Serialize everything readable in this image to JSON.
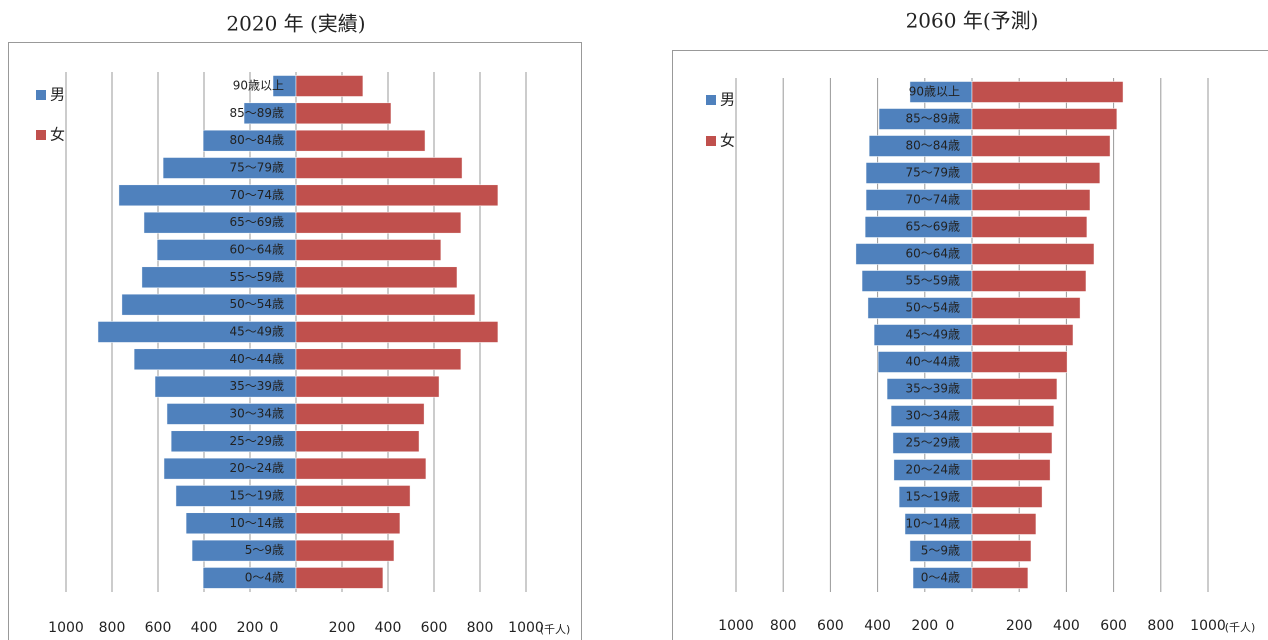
{
  "chart_data": [
    {
      "type": "bar",
      "title": "2020 年 (実績)",
      "categories": [
        "90歳以上",
        "85〜89歳",
        "80〜84歳",
        "75〜79歳",
        "70〜74歳",
        "65〜69歳",
        "60〜64歳",
        "55〜59歳",
        "50〜54歳",
        "45〜49歳",
        "40〜44歳",
        "35〜39歳",
        "30〜34歳",
        "25〜29歳",
        "20〜24歳",
        "15〜19歳",
        "10〜14歳",
        "5〜9歳",
        "0〜4歳"
      ],
      "series": [
        {
          "name": "男",
          "color": "#4f81bd",
          "values": [
            100,
            226,
            404,
            578,
            770,
            661,
            604,
            670,
            757,
            861,
            704,
            613,
            561,
            543,
            574,
            522,
            478,
            452,
            404
          ]
        },
        {
          "name": "女",
          "color": "#c0504d",
          "values": [
            291,
            413,
            561,
            722,
            878,
            717,
            630,
            700,
            778,
            878,
            717,
            622,
            557,
            535,
            565,
            496,
            452,
            426,
            378
          ]
        }
      ],
      "xlim": [
        0,
        1000
      ],
      "xticks": [
        0,
        200,
        400,
        600,
        800,
        1000
      ],
      "unit": "(千人)",
      "grid": true
    },
    {
      "type": "bar",
      "title": "2060 年(予測)",
      "categories": [
        "90歳以上",
        "85〜89歳",
        "80〜84歳",
        "75〜79歳",
        "70〜74歳",
        "65〜69歳",
        "60〜64歳",
        "55〜59歳",
        "50〜54歳",
        "45〜49歳",
        "40〜44歳",
        "35〜39歳",
        "30〜34歳",
        "25〜29歳",
        "20〜24歳",
        "15〜19歳",
        "10〜14歳",
        "5〜9歳",
        "0〜4歳"
      ],
      "series": [
        {
          "name": "男",
          "color": "#4f81bd",
          "values": [
            263,
            394,
            436,
            449,
            449,
            453,
            492,
            466,
            441,
            415,
            398,
            360,
            343,
            335,
            331,
            309,
            284,
            263,
            250
          ]
        },
        {
          "name": "女",
          "color": "#c0504d",
          "values": [
            640,
            614,
            585,
            542,
            500,
            487,
            517,
            483,
            458,
            428,
            403,
            360,
            347,
            339,
            331,
            297,
            271,
            250,
            237
          ]
        }
      ],
      "xlim": [
        0,
        1000
      ],
      "xticks": [
        0,
        200,
        400,
        600,
        800,
        1000
      ],
      "unit": "(千人)",
      "grid": true
    }
  ]
}
